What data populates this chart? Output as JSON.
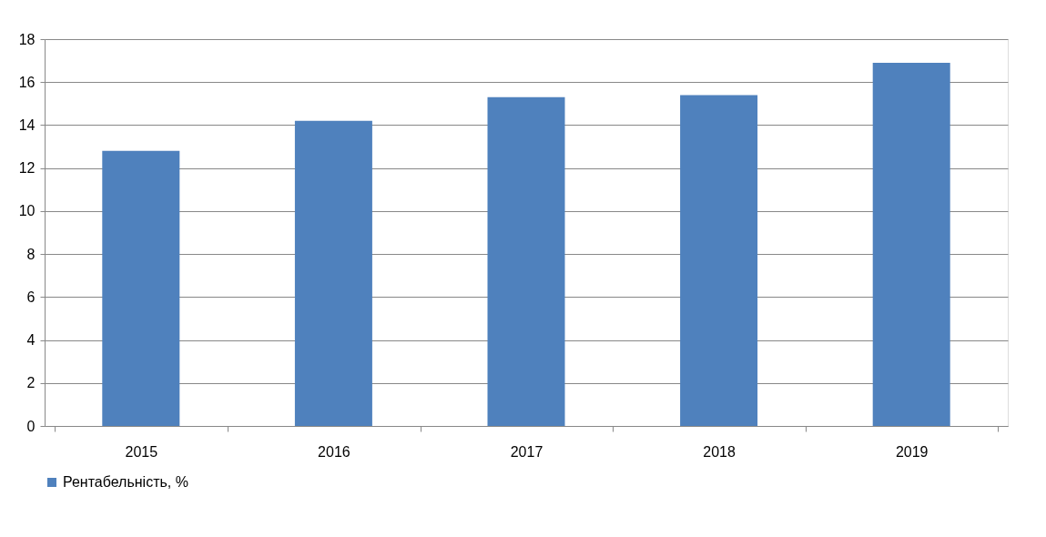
{
  "chart_data": {
    "type": "bar",
    "categories": [
      "2015",
      "2016",
      "2017",
      "2018",
      "2019"
    ],
    "series": [
      {
        "name": "Рентабельність, %",
        "color": "#4f81bd",
        "values": [
          12.8,
          14.2,
          15.3,
          15.4,
          16.9
        ]
      }
    ],
    "ylim": [
      0,
      18
    ],
    "yticks": [
      0,
      2,
      4,
      6,
      8,
      10,
      12,
      14,
      16,
      18
    ],
    "grid": "y",
    "legend": "bottom"
  }
}
